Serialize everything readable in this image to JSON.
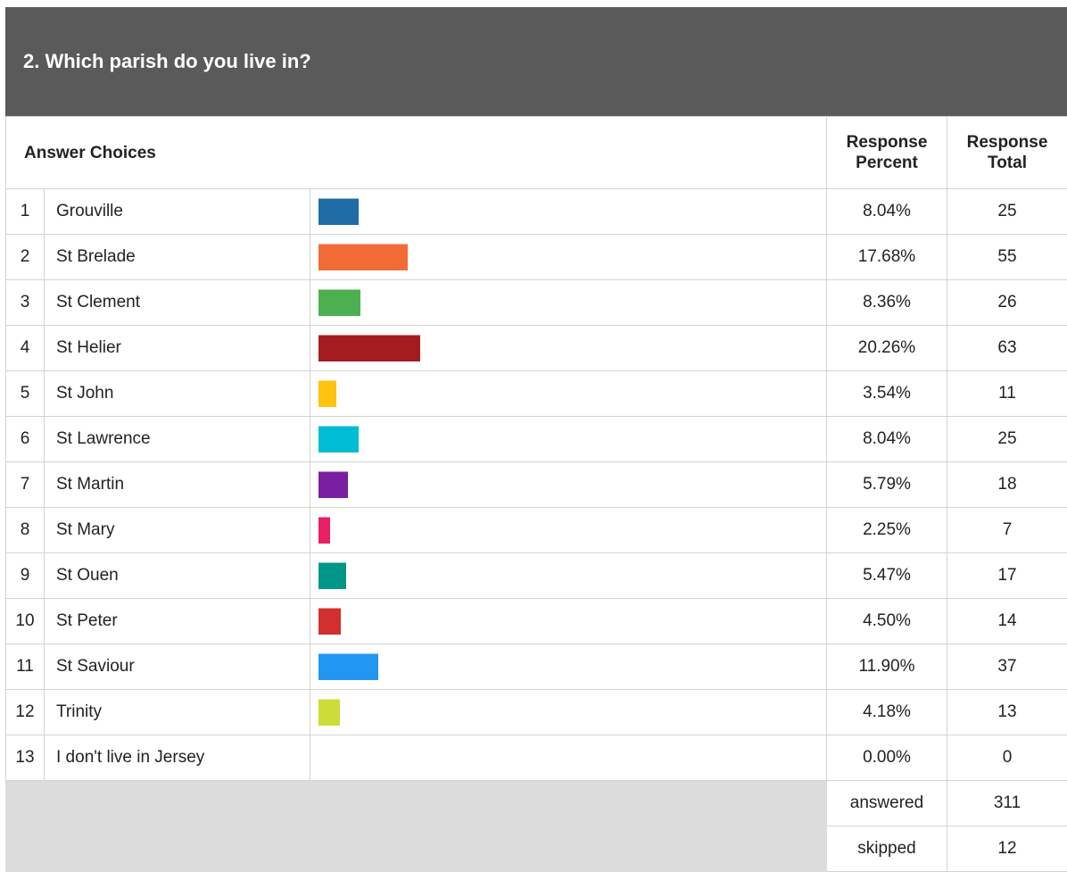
{
  "title": "2. Which parish do you live in?",
  "header": {
    "answer_choices": "Answer Choices",
    "response_percent": "Response Percent",
    "response_total": "Response Total"
  },
  "chart_data": {
    "type": "bar",
    "title": "2. Which parish do you live in?",
    "categories": [
      "Grouville",
      "St Brelade",
      "St Clement",
      "St Helier",
      "St John",
      "St Lawrence",
      "St Martin",
      "St Mary",
      "St Ouen",
      "St Peter",
      "St Saviour",
      "Trinity",
      "I don't live in Jersey"
    ],
    "percents": [
      "8.04%",
      "17.68%",
      "8.36%",
      "20.26%",
      "3.54%",
      "8.04%",
      "5.79%",
      "2.25%",
      "5.47%",
      "4.50%",
      "11.90%",
      "4.18%",
      "0.00%"
    ],
    "values": [
      8.04,
      17.68,
      8.36,
      20.26,
      3.54,
      8.04,
      5.79,
      2.25,
      5.47,
      4.5,
      11.9,
      4.18,
      0.0
    ],
    "totals": [
      25,
      55,
      26,
      63,
      11,
      25,
      18,
      7,
      17,
      14,
      37,
      13,
      0
    ],
    "colors": [
      "#1f6ca6",
      "#f26b36",
      "#4caf50",
      "#a31c1f",
      "#ffc20e",
      "#00bcd4",
      "#7b1fa2",
      "#e91e63",
      "#009688",
      "#d32f2f",
      "#2196f3",
      "#cddc39",
      "#ffffff"
    ],
    "xlim": [
      0,
      100
    ]
  },
  "footer": {
    "answered_label": "answered",
    "answered": 311,
    "skipped_label": "skipped",
    "skipped": 12
  }
}
